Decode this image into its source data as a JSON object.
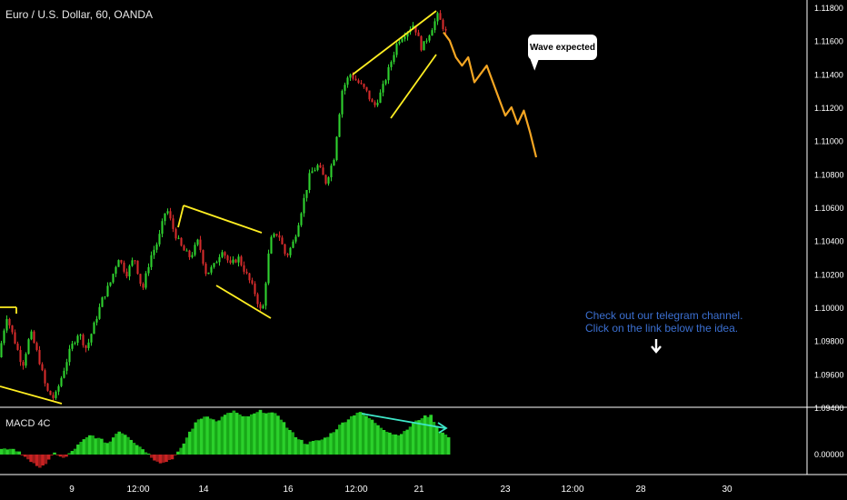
{
  "header": {
    "symbol_title": "Euro / U.S. Dollar, 60, OANDA"
  },
  "indicator": {
    "title": "MACD 4C",
    "zero_label": "0.00000"
  },
  "annotations": {
    "callout": "Wave expected",
    "promo_line1": "Check out our telegram channel.",
    "promo_line2": "Click on the link below the idea."
  },
  "colors": {
    "up": "#2fd12f",
    "down": "#d42b2b",
    "forecast": "#f5a623",
    "pattern": "#ffee22",
    "divergence": "#3ee6c8",
    "promo": "#3b6fd0",
    "background": "#000000",
    "axis": "#ffffff"
  },
  "chart_data": {
    "type": "candlestick",
    "price_axis": {
      "ticks": [
        "1.11800",
        "1.11600",
        "1.11400",
        "1.11200",
        "1.11000",
        "1.10800",
        "1.10600",
        "1.10400",
        "1.10200",
        "1.10000",
        "1.09800",
        "1.09600",
        "1.09400"
      ],
      "ylim": [
        1.094,
        1.118
      ]
    },
    "time_axis": {
      "ticks": [
        "9",
        "12:00",
        "14",
        "16",
        "12:00",
        "21",
        "23",
        "12:00",
        "28",
        "30"
      ]
    },
    "price_path": [
      1.097,
      1.0995,
      1.098,
      1.0965,
      1.0985,
      1.097,
      1.095,
      1.0945,
      1.096,
      1.0975,
      1.0985,
      1.0975,
      1.099,
      1.1005,
      1.1015,
      1.103,
      1.102,
      1.103,
      1.101,
      1.103,
      1.104,
      1.106,
      1.1045,
      1.1035,
      1.103,
      1.104,
      1.102,
      1.1025,
      1.1035,
      1.1025,
      1.103,
      1.102,
      1.101,
      1.0995,
      1.104,
      1.1045,
      1.103,
      1.104,
      1.106,
      1.108,
      1.1085,
      1.1075,
      1.109,
      1.113,
      1.114,
      1.1135,
      1.113,
      1.112,
      1.113,
      1.1145,
      1.116,
      1.1165,
      1.117,
      1.1155,
      1.1165,
      1.1175,
      1.1165
    ],
    "forecast_path": [
      1.1165,
      1.116,
      1.115,
      1.1145,
      1.115,
      1.1135,
      1.114,
      1.1145,
      1.1135,
      1.1125,
      1.1115,
      1.112,
      1.111,
      1.1118,
      1.1105,
      1.109
    ],
    "macd_histogram": [
      0.1,
      0.15,
      0.05,
      -0.1,
      -0.3,
      -0.2,
      0.05,
      -0.1,
      0.1,
      0.3,
      0.45,
      0.35,
      0.25,
      0.55,
      0.45,
      0.25,
      0.1,
      -0.1,
      -0.2,
      -0.1,
      0.1,
      0.5,
      0.8,
      0.9,
      0.75,
      0.9,
      1.0,
      0.85,
      0.9,
      1.0,
      0.95,
      0.9,
      0.6,
      0.4,
      0.25,
      0.3,
      0.35,
      0.5,
      0.7,
      0.85,
      1.0,
      0.85,
      0.7,
      0.55,
      0.45,
      0.5,
      0.7,
      0.85,
      0.9,
      0.55,
      0.4
    ],
    "trend_lines": "yellow channel/wedge outlines on swings",
    "divergence_line": "cyan arrow on MACD highs"
  }
}
